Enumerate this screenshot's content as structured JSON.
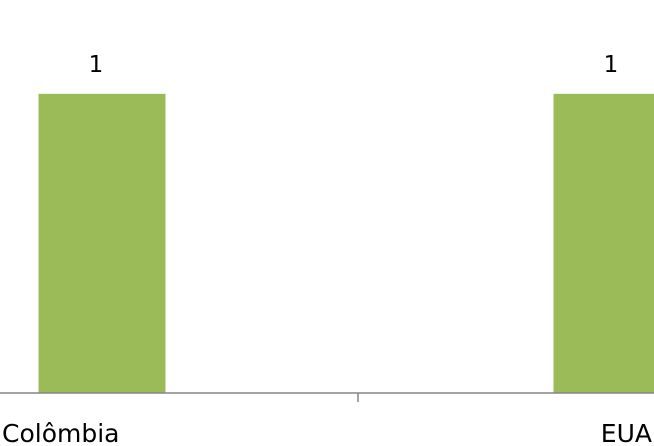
{
  "chart_data": {
    "type": "bar",
    "categories": [
      "Colômbia",
      "EUA"
    ],
    "values": [
      1,
      1
    ],
    "data_labels": [
      "1",
      "1"
    ],
    "title": "",
    "xlabel": "",
    "ylabel": "",
    "ylim": [
      0,
      1.2
    ],
    "grid": false,
    "legend": "none",
    "bar_color": "#9BBB59",
    "axis_color": "#868686"
  }
}
